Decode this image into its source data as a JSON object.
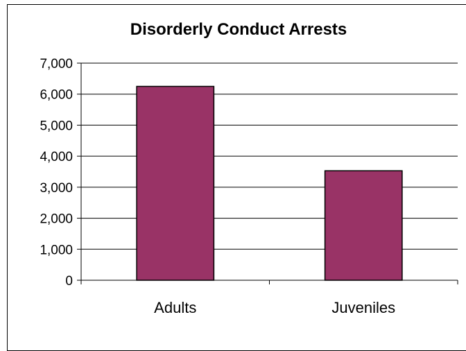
{
  "chart_data": {
    "type": "bar",
    "title": "Disorderly Conduct Arrests",
    "categories": [
      "Adults",
      "Juveniles"
    ],
    "values": [
      6250,
      3530
    ],
    "ylim": [
      0,
      7000
    ],
    "yticks": [
      "0",
      "1,000",
      "2,000",
      "3,000",
      "4,000",
      "5,000",
      "6,000",
      "7,000"
    ],
    "xlabel": "",
    "ylabel": "",
    "grid": true,
    "bar_color": "#993366",
    "legend": "none"
  }
}
